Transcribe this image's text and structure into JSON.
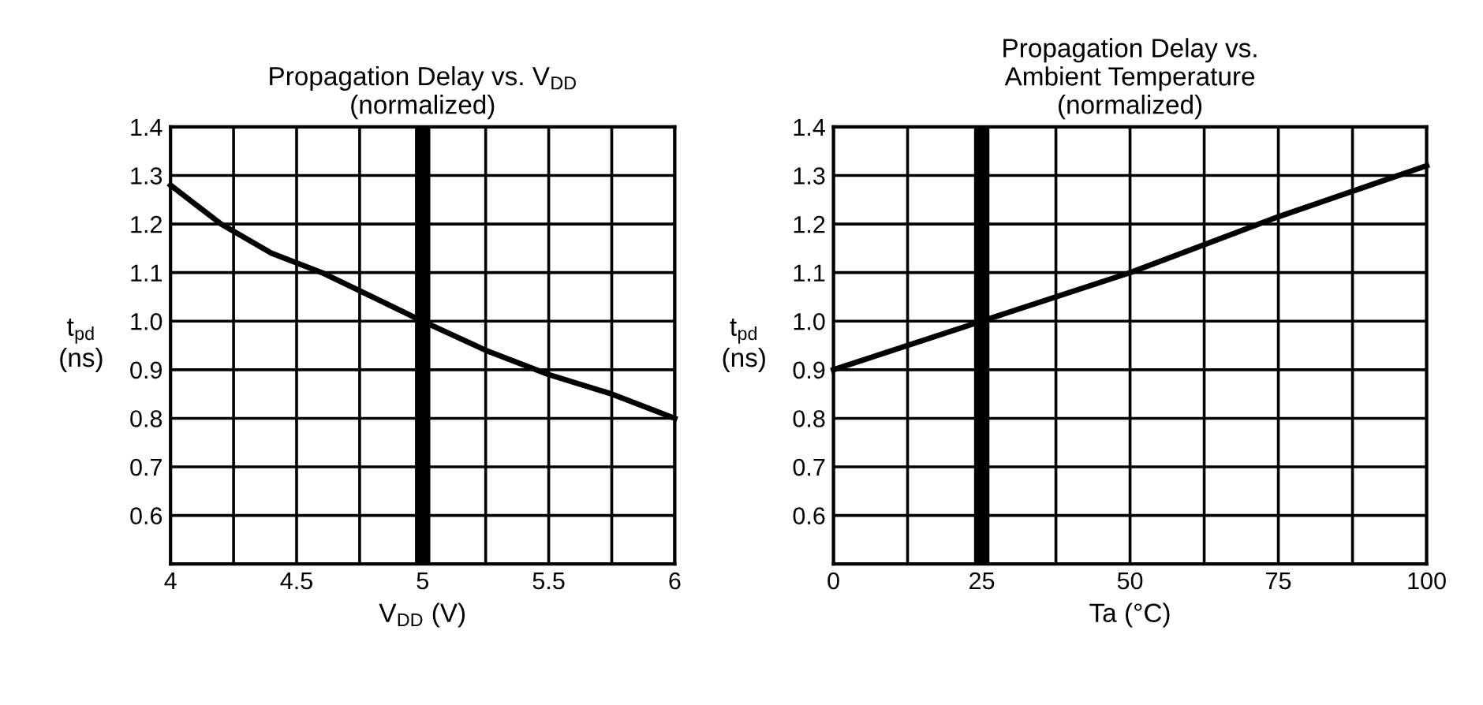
{
  "chart_data": [
    {
      "type": "line",
      "title": "Propagation Delay vs. V$_{DD}$\n(normalized)",
      "xlabel": "V$_{DD}$ (V)",
      "ylabel": "t$_{pd}$\n(ns)",
      "x": [
        4,
        4.2,
        4.4,
        4.6,
        4.8,
        5,
        5.25,
        5.5,
        5.75,
        6
      ],
      "series": [
        {
          "color": "#000000",
          "values": [
            1.28,
            1.2,
            1.14,
            1.1,
            1.05,
            1.0,
            0.94,
            0.89,
            0.85,
            0.8
          ]
        }
      ],
      "xlim": [
        4,
        6
      ],
      "xticks": [
        4,
        {
          "value": 4.25,
          "label": null
        },
        4.5,
        {
          "value": 4.75,
          "label": null
        },
        5,
        {
          "value": 5.25,
          "label": null
        },
        5.5,
        {
          "value": 5.75,
          "label": null
        },
        6
      ],
      "ylim": [
        0.5,
        1.4
      ],
      "yticks": [
        0.6,
        0.7,
        0.8,
        0.9,
        {
          "value": 1,
          "label": "1.0"
        },
        1.1,
        1.2,
        1.3,
        1.4
      ],
      "ref_lines": [
        {
          "axis": "x",
          "value": 5,
          "color": "#000000"
        }
      ],
      "grid": true,
      "legend": false,
      "marker": "none",
      "line_style": "solid"
    },
    {
      "type": "line",
      "title": "Propagation Delay vs.\nAmbient Temperature\n(normalized)",
      "xlabel": "Ta (°C)",
      "ylabel": "t$_{pd}$\n(ns)",
      "x": [
        0,
        25,
        50,
        75,
        100
      ],
      "series": [
        {
          "color": "#000000",
          "values": [
            0.9,
            1.0,
            1.1,
            1.215,
            1.32
          ]
        }
      ],
      "xlim": [
        0,
        100
      ],
      "xticks": [
        0,
        {
          "value": 12.5,
          "label": null
        },
        25,
        {
          "value": 37.5,
          "label": null
        },
        50,
        {
          "value": 62.5,
          "label": null
        },
        75,
        {
          "value": 87.5,
          "label": null
        },
        100
      ],
      "ylim": [
        0.5,
        1.4
      ],
      "yticks": [
        0.6,
        0.7,
        0.8,
        0.9,
        {
          "value": 1,
          "label": "1.0"
        },
        1.1,
        1.2,
        1.3,
        1.4
      ],
      "ref_lines": [
        {
          "axis": "x",
          "value": 25,
          "color": "#000000"
        }
      ],
      "grid": true,
      "legend": false,
      "marker": "none",
      "line_style": "solid"
    }
  ]
}
